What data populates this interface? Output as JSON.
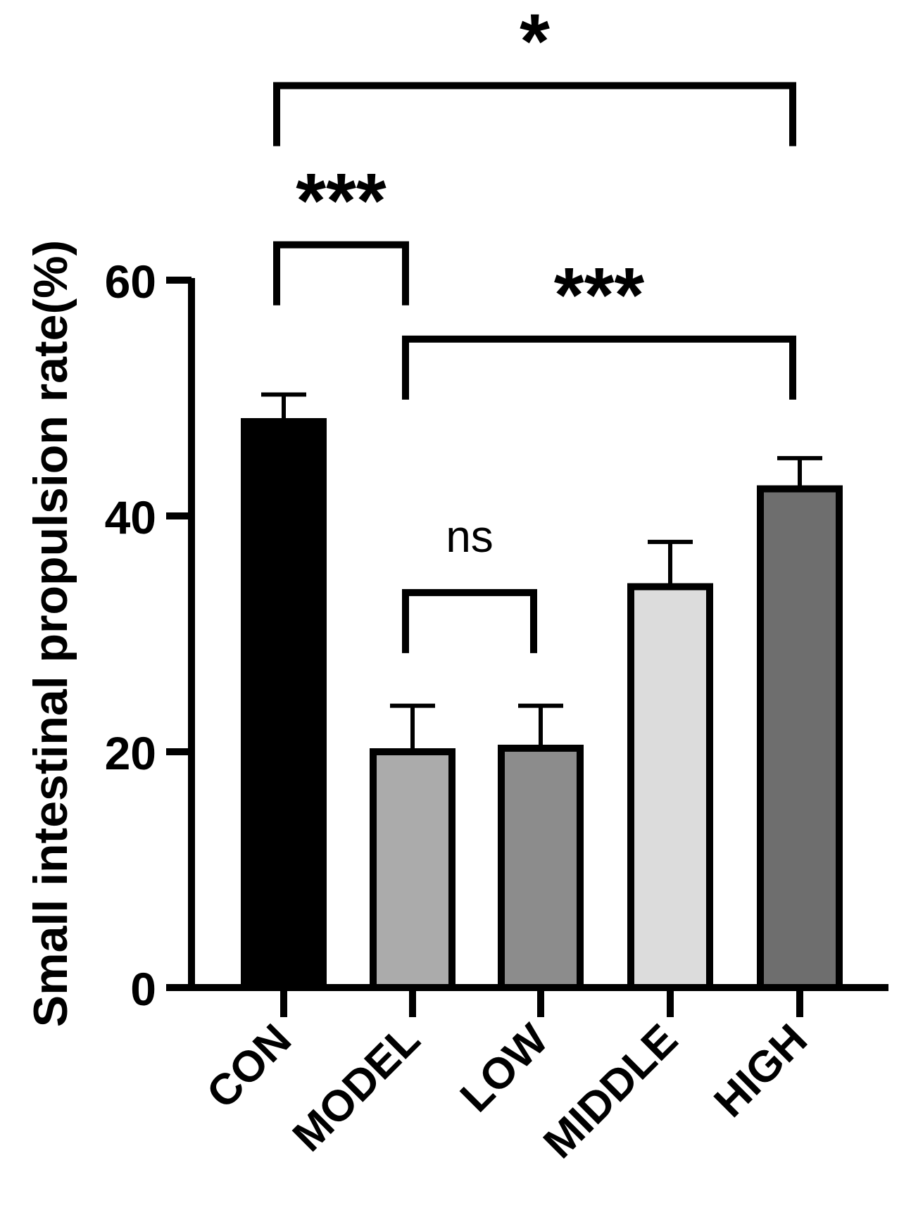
{
  "chart_data": {
    "type": "bar",
    "title": "",
    "xlabel": "",
    "ylabel": "Small intestinal propulsion rate(%)",
    "ylim": [
      0,
      60
    ],
    "yticks": [
      0,
      20,
      40,
      60
    ],
    "grid": false,
    "legend": "none",
    "categories": [
      "CON",
      "MODEL",
      "LOW",
      "MIDDLE",
      "HIGH"
    ],
    "values": [
      48,
      20,
      20.3,
      34,
      42.3
    ],
    "errors": [
      2.3,
      3.9,
      3.6,
      3.8,
      2.6
    ],
    "colors": [
      "#000000",
      "#ababab",
      "#8c8c8c",
      "#dcdcdc",
      "#6e6e6e"
    ],
    "significance": [
      {
        "from": "CON",
        "to": "MODEL",
        "label": "***",
        "y": 63
      },
      {
        "from": "MODEL",
        "to": "LOW",
        "label": "ns",
        "y": 33.5
      },
      {
        "from": "MODEL",
        "to": "HIGH",
        "label": "***",
        "y": 55
      },
      {
        "from": "CON",
        "to": "HIGH",
        "label": "*",
        "y": 76.5
      }
    ]
  }
}
